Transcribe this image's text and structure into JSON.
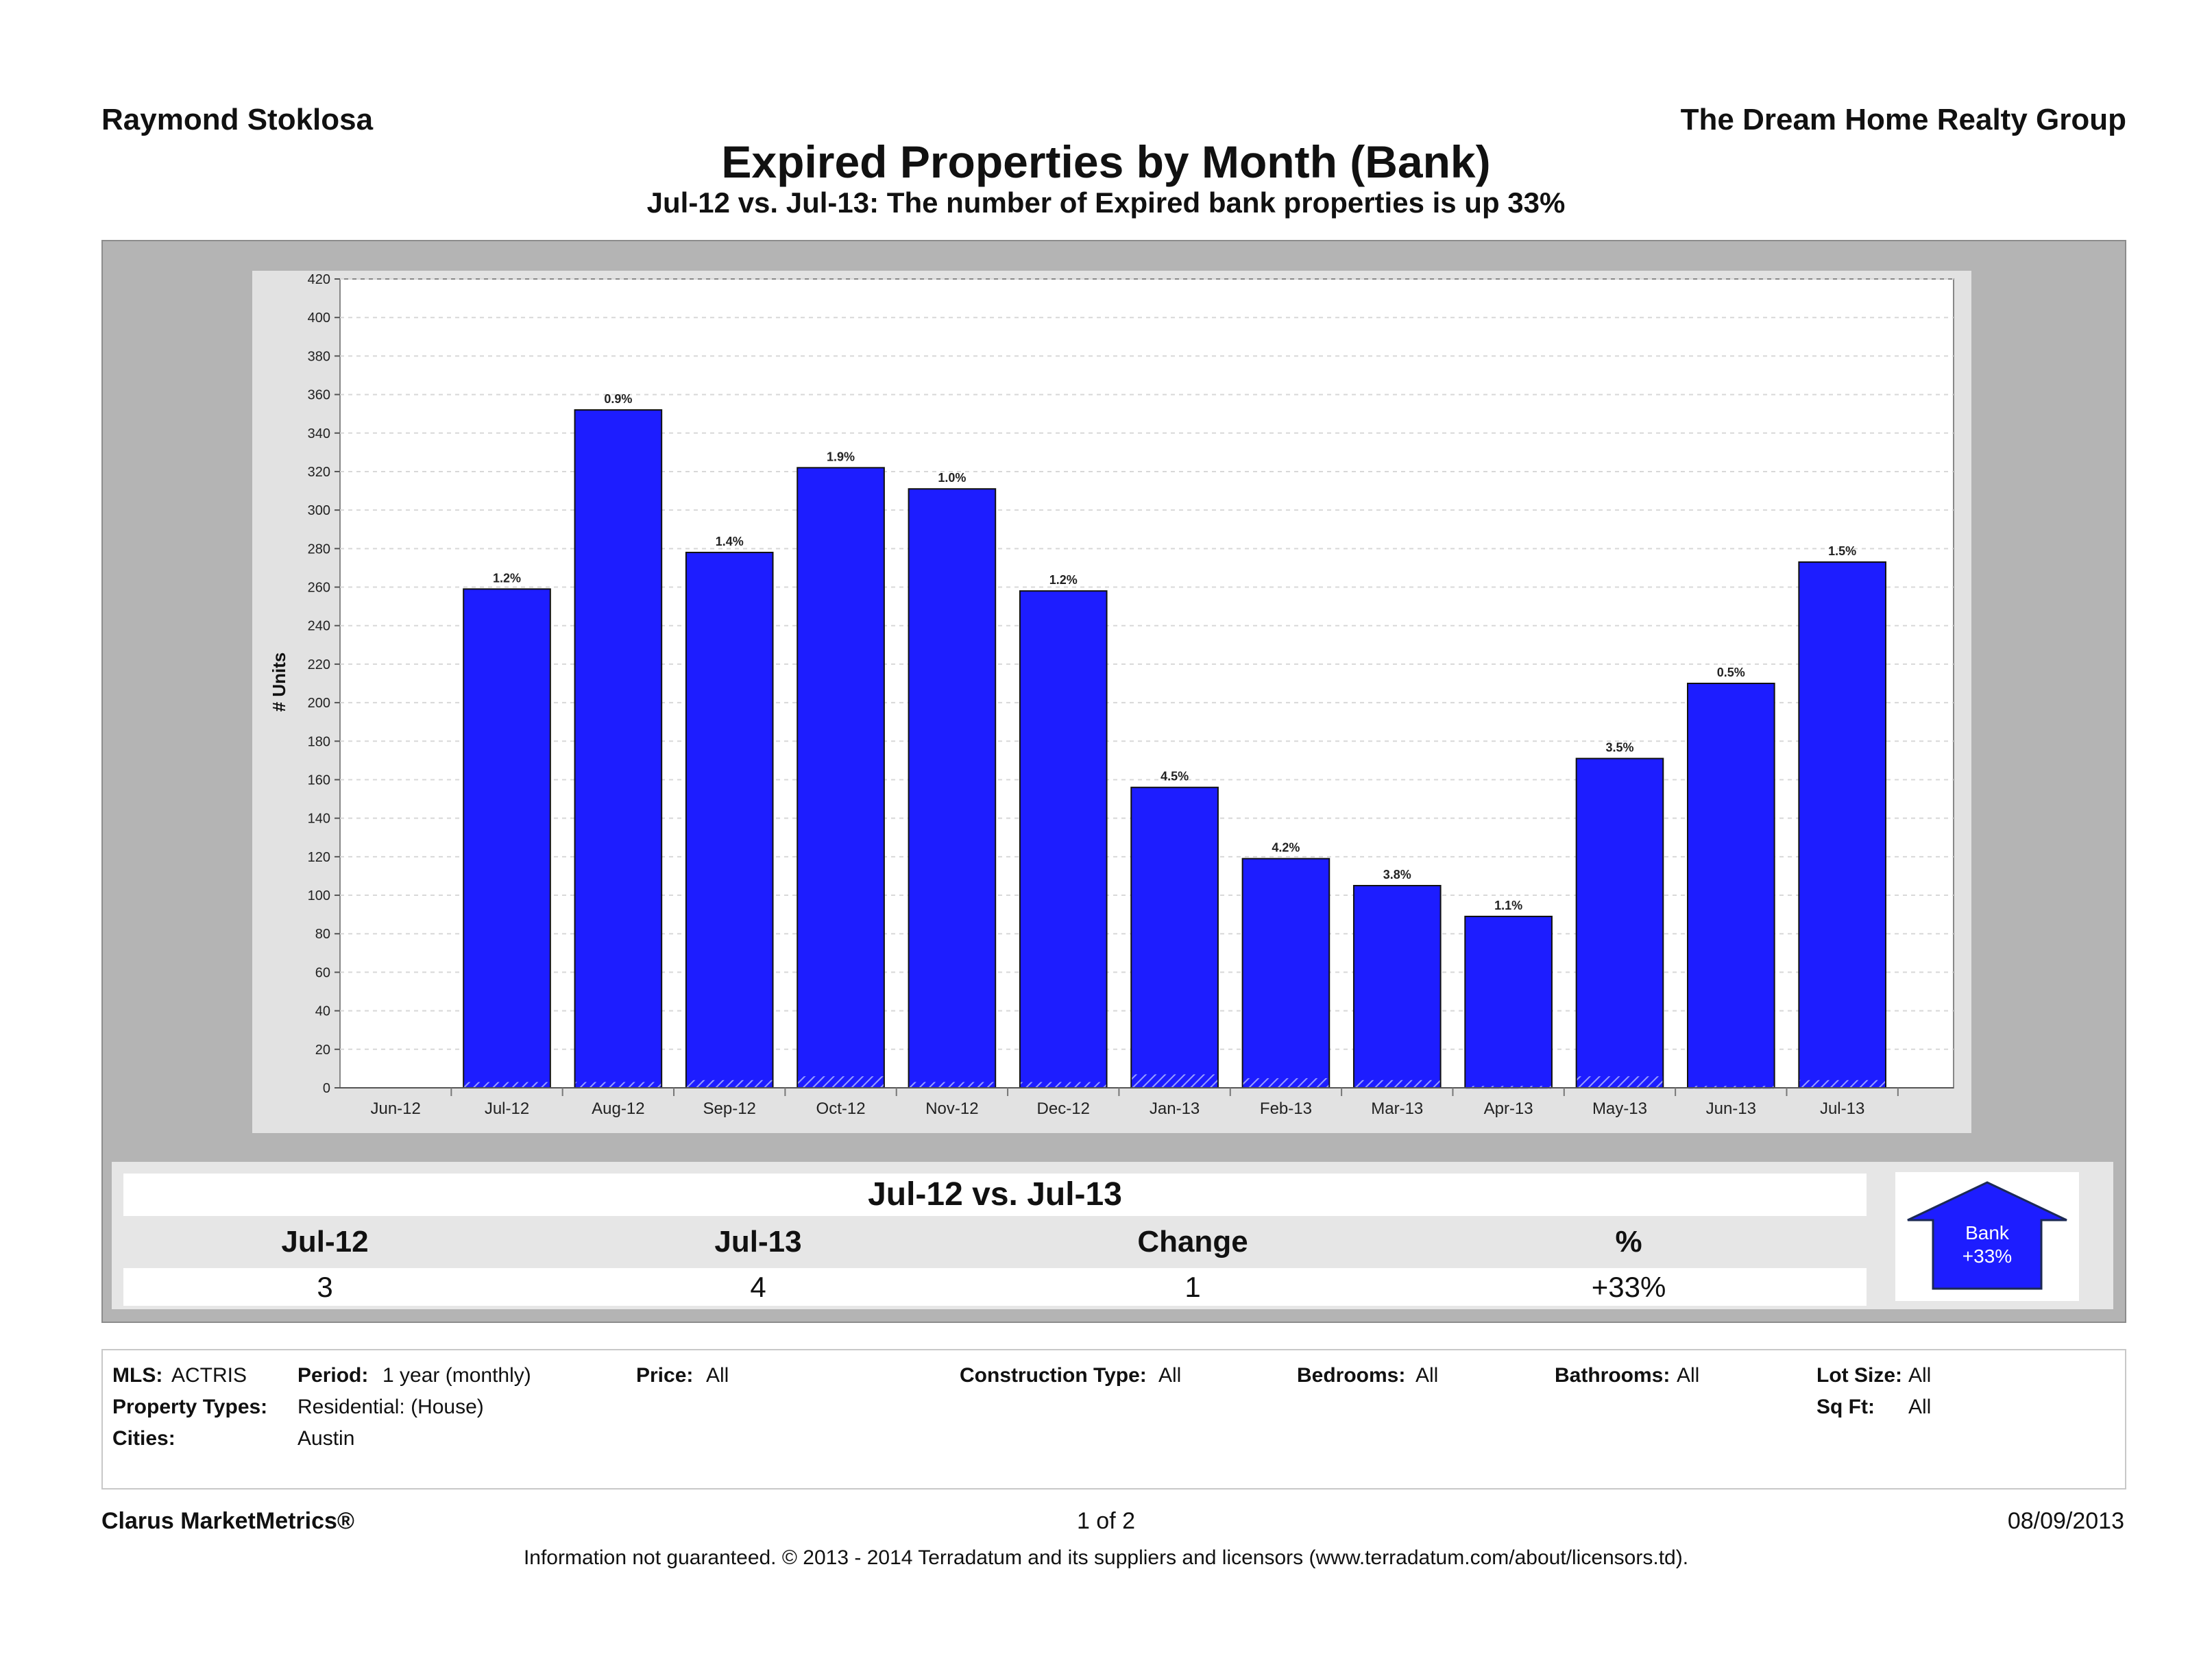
{
  "header": {
    "agent_name": "Raymond Stoklosa",
    "company": "The Dream Home Realty Group",
    "title": "Expired Properties by Month (Bank)",
    "subtitle": "Jul-12 vs. Jul-13: The number of Expired bank properties is up 33%"
  },
  "chart_data": {
    "type": "bar",
    "ylabel": "# Units",
    "ylim": [
      0,
      420
    ],
    "yticks": [
      0,
      20,
      40,
      60,
      80,
      100,
      120,
      140,
      160,
      180,
      200,
      220,
      240,
      260,
      280,
      300,
      320,
      340,
      360,
      380,
      400,
      420
    ],
    "grid": true,
    "categories": [
      "Jun-12",
      "Jul-12",
      "Aug-12",
      "Sep-12",
      "Oct-12",
      "Nov-12",
      "Dec-12",
      "Jan-13",
      "Feb-13",
      "Mar-13",
      "Apr-13",
      "May-13",
      "Jun-13",
      "Jul-13"
    ],
    "series": [
      {
        "values": [
          null,
          259,
          352,
          278,
          322,
          311,
          258,
          156,
          119,
          105,
          89,
          171,
          210,
          273
        ],
        "data_labels": [
          "",
          "1.2%",
          "0.9%",
          "1.4%",
          "1.9%",
          "1.0%",
          "1.2%",
          "4.5%",
          "4.2%",
          "3.8%",
          "1.1%",
          "3.5%",
          "0.5%",
          "1.5%"
        ],
        "color": "#1d1dff"
      },
      {
        "values": [
          null,
          3,
          3,
          4,
          6,
          3,
          3,
          7,
          5,
          4,
          1,
          6,
          1,
          4
        ],
        "color": "#1d1dff",
        "pattern": "hatched"
      }
    ]
  },
  "comparison": {
    "heading": "Jul-12 vs. Jul-13",
    "col1_label": "Jul-12",
    "col2_label": "Jul-13",
    "col3_label": "Change",
    "col4_label": "%",
    "col1_value": "3",
    "col2_value": "4",
    "col3_value": "1",
    "col4_value": "+33%",
    "arrow_label": "Bank",
    "arrow_value": "+33%",
    "arrow_color": "#1d1dff"
  },
  "filters": {
    "mls_label": "MLS:",
    "mls_value": "ACTRIS",
    "period_label": "Period:",
    "period_value": "1 year (monthly)",
    "price_label": "Price:",
    "price_value": "All",
    "construction_label": "Construction Type:",
    "construction_value": "All",
    "bedrooms_label": "Bedrooms:",
    "bedrooms_value": "All",
    "bathrooms_label": "Bathrooms:",
    "bathrooms_value": "All",
    "lotsize_label": "Lot Size:",
    "lotsize_value": "All",
    "proptypes_label": "Property Types:",
    "proptypes_value": "Residential: (House)",
    "sqft_label": "Sq Ft:",
    "sqft_value": "All",
    "cities_label": "Cities:",
    "cities_value": "Austin"
  },
  "footer": {
    "brand": "Clarus MarketMetrics®",
    "page": "1 of 2",
    "date": "08/09/2013",
    "disclaimer": "Information not guaranteed.  © 2013 - 2014 Terradatum and its suppliers and licensors (www.terradatum.com/about/licensors.td)."
  }
}
